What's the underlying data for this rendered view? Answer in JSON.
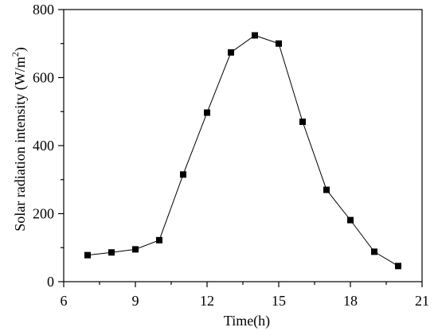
{
  "chart_data": {
    "type": "line",
    "title": "",
    "xlabel": "Time(h)",
    "ylabel_main": "Solar radiation intensity (W/m",
    "ylabel_sup": "2",
    "ylabel_close": ")",
    "xlim": [
      6,
      21
    ],
    "ylim": [
      0,
      800
    ],
    "x_ticks": [
      6,
      9,
      12,
      15,
      18,
      21
    ],
    "y_ticks": [
      0,
      200,
      400,
      600,
      800
    ],
    "grid": false,
    "legend": "none",
    "line_color": "#000000",
    "marker": "square",
    "series": [
      {
        "x": [
          7,
          8,
          9,
          10,
          11,
          12,
          13,
          14,
          15,
          16,
          17,
          18,
          19,
          20
        ],
        "values": [
          78,
          86,
          95,
          122,
          315,
          497,
          674,
          724,
          700,
          470,
          270,
          181,
          88,
          46
        ]
      }
    ]
  }
}
